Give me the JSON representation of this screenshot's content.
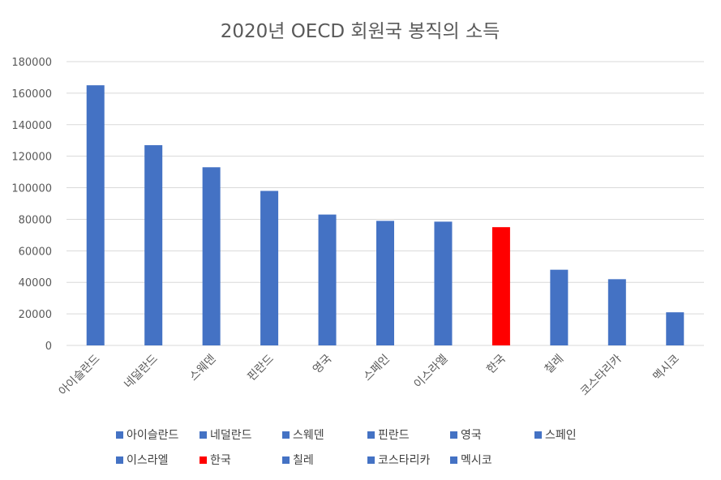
{
  "chart_data": {
    "type": "bar",
    "title": "2020년 OECD 회원국 봉직의 소득",
    "xlabel": "",
    "ylabel": "",
    "ylim": [
      0,
      180000
    ],
    "yticks": [
      0,
      20000,
      40000,
      60000,
      80000,
      100000,
      120000,
      140000,
      160000,
      180000
    ],
    "grid": true,
    "legend_position": "bottom",
    "categories": [
      "아이슬란드",
      "네덜란드",
      "스웨덴",
      "핀란드",
      "영국",
      "스페인",
      "이스라엘",
      "한국",
      "칠레",
      "코스타리카",
      "멕시코"
    ],
    "values": [
      165000,
      127000,
      113000,
      98000,
      83000,
      79000,
      78500,
      75000,
      48000,
      42000,
      21000
    ],
    "colors": [
      "#4472c4",
      "#4472c4",
      "#4472c4",
      "#4472c4",
      "#4472c4",
      "#4472c4",
      "#4472c4",
      "#ff0000",
      "#4472c4",
      "#4472c4",
      "#4472c4"
    ]
  }
}
